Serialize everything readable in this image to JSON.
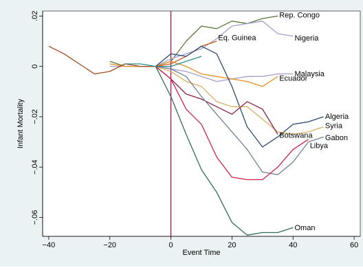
{
  "chart_data": {
    "type": "line",
    "title": "",
    "xlabel": "Event Time",
    "ylabel": "Infant Mortality",
    "xlim": [
      -42,
      62
    ],
    "ylim": [
      -0.0675,
      0.022
    ],
    "xticks": [
      -40,
      -20,
      0,
      20,
      40,
      60
    ],
    "xtick_labels": [
      "−40",
      "−20",
      "0",
      "20",
      "40",
      "60"
    ],
    "yticks": [
      0.02,
      0,
      -0.02,
      -0.04,
      -0.06
    ],
    "ytick_labels": [
      ".02",
      "0",
      "−.02",
      "−.04",
      "−.06"
    ],
    "grid": false,
    "legend": "none",
    "event_line": {
      "x": 0,
      "color": "#a0004d"
    },
    "colors": {
      "plot_background": "#ffffff",
      "outer_background": "#eaf2f3"
    },
    "series": [
      {
        "name": "Rep. Congo",
        "color": "#5a7a3a",
        "x": [
          -20,
          -15,
          -10,
          -5,
          0,
          5,
          10,
          15,
          20,
          25,
          30,
          35
        ],
        "y": [
          0.002,
          0.0,
          0.0,
          0.0,
          0.002,
          0.01,
          0.016,
          0.015,
          0.018,
          0.017,
          0.019,
          0.02
        ]
      },
      {
        "name": "Nigeria",
        "color": "#a0a0c8",
        "x": [
          -5,
          0,
          5,
          10,
          15,
          20,
          25,
          30,
          35,
          40
        ],
        "y": [
          0.0,
          0.003,
          0.005,
          0.007,
          0.011,
          0.016,
          0.017,
          0.018,
          0.013,
          0.012
        ]
      },
      {
        "name": "Eq. Guinea",
        "color": "#c85a1e",
        "x": [
          -5,
          0,
          5,
          10,
          15
        ],
        "y": [
          0.0,
          0.001,
          0.004,
          0.008,
          0.01
        ]
      },
      {
        "name": "Malaysia",
        "color": "#a89cc8",
        "x": [
          -20,
          -15,
          -10,
          -5,
          0,
          5,
          10,
          15,
          20,
          25,
          30,
          35,
          40
        ],
        "y": [
          0.0,
          0.0,
          0.0,
          0.0,
          -0.001,
          -0.002,
          -0.004,
          -0.006,
          -0.005,
          -0.004,
          -0.004,
          -0.003,
          -0.003
        ]
      },
      {
        "name": "Ecuador",
        "color": "#e8901e",
        "x": [
          -20,
          -15,
          -10,
          -5,
          0,
          5,
          10,
          15,
          20,
          25,
          30,
          35
        ],
        "y": [
          0.001,
          0.0,
          0.0,
          0.0,
          0.002,
          0.0,
          -0.003,
          -0.004,
          -0.005,
          -0.006,
          -0.008,
          -0.004
        ]
      },
      {
        "name": "Algeria",
        "color": "#2b4a72",
        "x": [
          -5,
          0,
          5,
          10,
          15,
          20,
          25,
          30,
          35,
          40,
          45,
          50
        ],
        "y": [
          0.0,
          0.005,
          0.004,
          0.008,
          0.005,
          -0.008,
          -0.024,
          -0.032,
          -0.028,
          -0.023,
          -0.022,
          -0.02
        ]
      },
      {
        "name": "Syria",
        "color": "#d8b060",
        "x": [
          -5,
          0,
          5,
          10,
          15,
          20,
          25,
          30,
          35,
          40,
          45,
          50
        ],
        "y": [
          0.0,
          -0.002,
          -0.006,
          -0.008,
          -0.014,
          -0.016,
          -0.016,
          -0.021,
          -0.026,
          -0.027,
          -0.026,
          -0.024
        ]
      },
      {
        "name": "Botswana",
        "color": "#8c1e46",
        "x": [
          -5,
          0,
          5,
          10,
          15,
          20,
          25,
          30,
          35
        ],
        "y": [
          0.0,
          -0.005,
          -0.011,
          -0.013,
          -0.016,
          -0.019,
          -0.014,
          -0.017,
          -0.027
        ]
      },
      {
        "name": "Gabon",
        "color": "#6e8296",
        "x": [
          -5,
          0,
          5,
          10,
          15,
          20,
          25,
          30,
          35,
          40,
          45,
          50
        ],
        "y": [
          0.0,
          -0.001,
          -0.004,
          -0.012,
          -0.019,
          -0.026,
          -0.033,
          -0.042,
          -0.043,
          -0.038,
          -0.03,
          -0.028
        ]
      },
      {
        "name": "Libya",
        "color": "#d0204a",
        "x": [
          -5,
          0,
          5,
          10,
          15,
          20,
          25,
          30,
          35,
          40,
          45
        ],
        "y": [
          0.0,
          -0.005,
          -0.017,
          -0.023,
          -0.036,
          -0.044,
          -0.045,
          -0.045,
          -0.04,
          -0.033,
          -0.029
        ]
      },
      {
        "name": "Oman",
        "color": "#2f6e55",
        "x": [
          -5,
          0,
          5,
          10,
          15,
          20,
          25,
          30,
          35,
          40
        ],
        "y": [
          0.0,
          -0.012,
          -0.027,
          -0.041,
          -0.05,
          -0.062,
          -0.067,
          -0.066,
          -0.066,
          -0.064
        ]
      },
      {
        "name": "",
        "color": "#a04a1e",
        "x": [
          -40,
          -35,
          -30,
          -25,
          -20,
          -15,
          -10,
          -5,
          0
        ],
        "y": [
          0.008,
          0.005,
          0.001,
          -0.003,
          -0.002,
          0.001,
          0.0,
          0.0,
          0.0
        ]
      },
      {
        "name": "",
        "color": "#2e8a8a",
        "x": [
          -15,
          -10,
          -5,
          0,
          5,
          10
        ],
        "y": [
          0.001,
          0.001,
          0.0,
          0.0,
          0.002,
          0.004
        ]
      }
    ],
    "annotations": [
      {
        "text": "Rep. Congo",
        "x": 35.5,
        "y": 0.0205
      },
      {
        "text": "Eq. Guinea",
        "x": 15.5,
        "y": 0.0115
      },
      {
        "text": "Nigeria",
        "x": 40.5,
        "y": 0.0113
      },
      {
        "text": "Malaysia",
        "x": 40.5,
        "y": -0.0028
      },
      {
        "text": "Ecuador",
        "x": 35.5,
        "y": -0.0046
      },
      {
        "text": "Algeria",
        "x": 50.5,
        "y": -0.0197
      },
      {
        "text": "Syria",
        "x": 50.5,
        "y": -0.0235
      },
      {
        "text": "Botswana",
        "x": 35.5,
        "y": -0.0272
      },
      {
        "text": "Gabon",
        "x": 50.5,
        "y": -0.0282
      },
      {
        "text": "Libya",
        "x": 45.5,
        "y": -0.0313
      },
      {
        "text": "Oman",
        "x": 40.5,
        "y": -0.064
      }
    ]
  }
}
